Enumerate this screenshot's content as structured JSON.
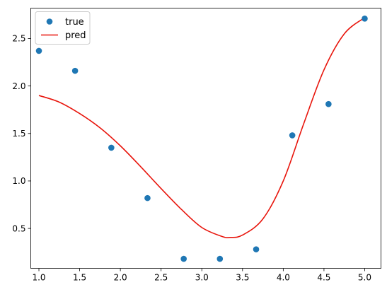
{
  "chart_data": {
    "type": "scatter",
    "title": "",
    "xlabel": "",
    "ylabel": "",
    "xlim": [
      0.9,
      5.2
    ],
    "ylim": [
      0.08,
      2.82
    ],
    "grid": false,
    "legend_position": "top-left",
    "x_ticks": [
      1.0,
      1.5,
      2.0,
      2.5,
      3.0,
      3.5,
      4.0,
      4.5,
      5.0
    ],
    "x_tick_labels": [
      "1.0",
      "1.5",
      "2.0",
      "2.5",
      "3.0",
      "3.5",
      "4.0",
      "4.5",
      "5.0"
    ],
    "y_ticks": [
      0.5,
      1.0,
      1.5,
      2.0,
      2.5
    ],
    "y_tick_labels": [
      "0.5",
      "1.0",
      "1.5",
      "2.0",
      "2.5"
    ],
    "series": [
      {
        "name": "true",
        "kind": "scatter",
        "color": "#1f77b4",
        "x": [
          1.0,
          1.444,
          1.889,
          2.333,
          2.778,
          3.222,
          3.667,
          4.111,
          4.556,
          5.0
        ],
        "y": [
          2.37,
          2.16,
          1.35,
          0.82,
          0.18,
          0.18,
          0.28,
          1.48,
          1.81,
          2.71
        ]
      },
      {
        "name": "pred",
        "kind": "line",
        "color": "#e8150c",
        "x": [
          1.0,
          1.25,
          1.5,
          1.75,
          2.0,
          2.25,
          2.5,
          2.75,
          3.0,
          3.25,
          3.35,
          3.5,
          3.75,
          4.0,
          4.25,
          4.5,
          4.75,
          5.0
        ],
        "y": [
          1.9,
          1.83,
          1.71,
          1.56,
          1.37,
          1.15,
          0.92,
          0.7,
          0.51,
          0.415,
          0.405,
          0.43,
          0.6,
          1.0,
          1.6,
          2.17,
          2.55,
          2.72
        ]
      }
    ]
  }
}
